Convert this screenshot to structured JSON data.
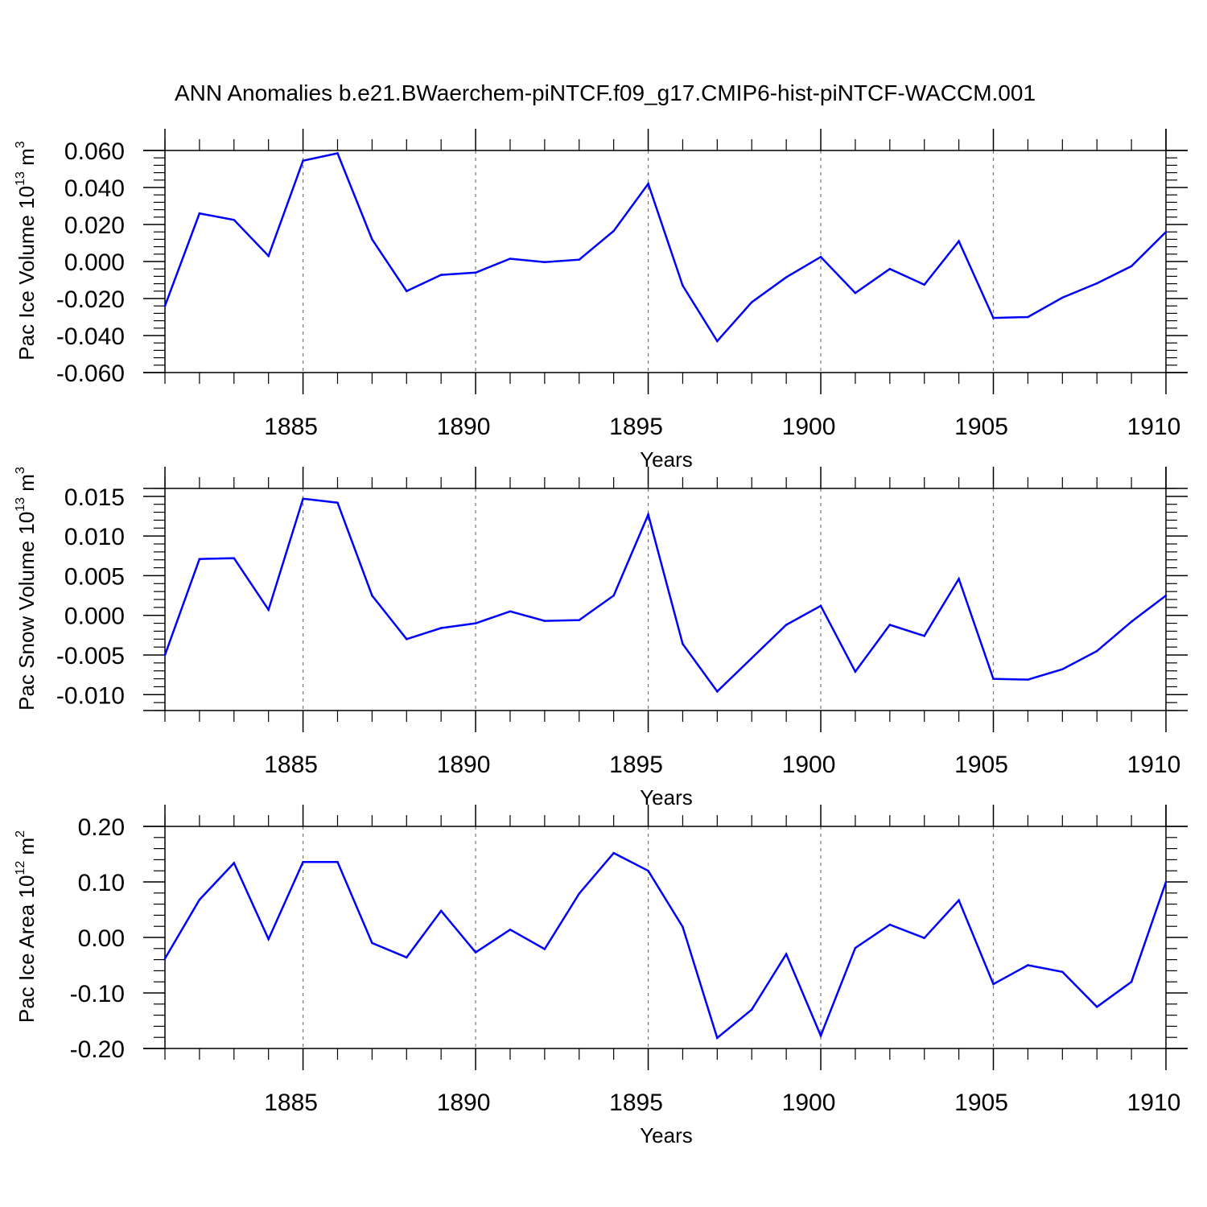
{
  "title": "ANN Anomalies b.e21.BWaerchem-piNTCF.f09_g17.CMIP6-hist-piNTCF-WACCM.001",
  "colors": {
    "line": "#0000ff",
    "axis": "#000000",
    "grid": "#777777"
  },
  "chart_data": [
    {
      "type": "line",
      "ylabel": "Pac Ice Volume 10",
      "ylabel_exp": "13",
      "ylabel_unit": " m",
      "ylabel_unit_exp": "3",
      "xlabel": "Years",
      "xlim": [
        1881,
        1910
      ],
      "ylim": [
        -0.06,
        0.06
      ],
      "yticks": [
        -0.06,
        -0.04,
        -0.02,
        0.0,
        0.02,
        0.04,
        0.06
      ],
      "ytick_labels": [
        "-0.060",
        "-0.040",
        "-0.020",
        "0.000",
        "0.020",
        "0.040",
        "0.060"
      ],
      "xticks": [
        1885,
        1890,
        1895,
        1900,
        1905,
        1910
      ],
      "xtick_labels": [
        "1885",
        "1890",
        "1895",
        "1900",
        "1905",
        "1910"
      ],
      "grid": "dashed vertical at major x ticks",
      "x": [
        1881,
        1882,
        1883,
        1884,
        1885,
        1886,
        1887,
        1888,
        1889,
        1890,
        1891,
        1892,
        1893,
        1894,
        1895,
        1896,
        1897,
        1898,
        1899,
        1900,
        1901,
        1902,
        1903,
        1904,
        1905,
        1906,
        1907,
        1908,
        1909,
        1910
      ],
      "y": [
        -0.024,
        0.026,
        0.0225,
        0.003,
        0.0545,
        0.0585,
        0.012,
        -0.016,
        -0.0072,
        -0.006,
        0.0015,
        -0.0003,
        0.001,
        0.0165,
        0.042,
        -0.013,
        -0.043,
        -0.022,
        -0.0085,
        0.0025,
        -0.017,
        -0.004,
        -0.0125,
        0.011,
        -0.0305,
        -0.03,
        -0.0195,
        -0.0118,
        -0.0025,
        0.016
      ]
    },
    {
      "type": "line",
      "ylabel": "Pac Snow Volume 10",
      "ylabel_exp": "13",
      "ylabel_unit": " m",
      "ylabel_unit_exp": "3",
      "xlabel": "Years",
      "xlim": [
        1881,
        1910
      ],
      "ylim": [
        -0.012,
        0.016
      ],
      "yticks": [
        -0.01,
        -0.005,
        0.0,
        0.005,
        0.01,
        0.015
      ],
      "ytick_labels": [
        "-0.010",
        "-0.005",
        "0.000",
        "0.005",
        "0.010",
        "0.015"
      ],
      "xticks": [
        1885,
        1890,
        1895,
        1900,
        1905,
        1910
      ],
      "xtick_labels": [
        "1885",
        "1890",
        "1895",
        "1900",
        "1905",
        "1910"
      ],
      "grid": "dashed vertical at major x ticks",
      "x": [
        1881,
        1882,
        1883,
        1884,
        1885,
        1886,
        1887,
        1888,
        1889,
        1890,
        1891,
        1892,
        1893,
        1894,
        1895,
        1896,
        1897,
        1898,
        1899,
        1900,
        1901,
        1902,
        1903,
        1904,
        1905,
        1906,
        1907,
        1908,
        1909,
        1910
      ],
      "y": [
        -0.005,
        0.0071,
        0.0072,
        0.0007,
        0.0147,
        0.0142,
        0.0025,
        -0.003,
        -0.0016,
        -0.001,
        0.0005,
        -0.0007,
        -0.0006,
        0.0025,
        0.0127,
        -0.0036,
        -0.0096,
        -0.0054,
        -0.0012,
        0.0012,
        -0.0071,
        -0.0012,
        -0.0026,
        0.0046,
        -0.008,
        -0.0081,
        -0.0068,
        -0.0045,
        -0.0008,
        0.0025
      ]
    },
    {
      "type": "line",
      "ylabel": "Pac Ice Area 10",
      "ylabel_exp": "12",
      "ylabel_unit": " m",
      "ylabel_unit_exp": "2",
      "xlabel": "Years",
      "xlim": [
        1881,
        1910
      ],
      "ylim": [
        -0.2,
        0.2
      ],
      "yticks": [
        -0.2,
        -0.1,
        0.0,
        0.1,
        0.2
      ],
      "ytick_labels": [
        "-0.20",
        "-0.10",
        "0.00",
        "0.10",
        "0.20"
      ],
      "xticks": [
        1885,
        1890,
        1895,
        1900,
        1905,
        1910
      ],
      "xtick_labels": [
        "1885",
        "1890",
        "1895",
        "1900",
        "1905",
        "1910"
      ],
      "grid": "dashed vertical at major x ticks",
      "x": [
        1881,
        1882,
        1883,
        1884,
        1885,
        1886,
        1887,
        1888,
        1889,
        1890,
        1891,
        1892,
        1893,
        1894,
        1895,
        1896,
        1897,
        1898,
        1899,
        1900,
        1901,
        1902,
        1903,
        1904,
        1905,
        1906,
        1907,
        1908,
        1909,
        1910
      ],
      "y": [
        -0.038,
        0.068,
        0.134,
        -0.003,
        0.136,
        0.136,
        -0.01,
        -0.036,
        0.048,
        -0.027,
        0.014,
        -0.021,
        0.079,
        0.152,
        0.12,
        0.019,
        -0.181,
        -0.13,
        -0.03,
        -0.177,
        -0.019,
        0.023,
        -0.001,
        0.067,
        -0.084,
        -0.05,
        -0.062,
        -0.125,
        -0.08,
        0.1
      ]
    }
  ]
}
